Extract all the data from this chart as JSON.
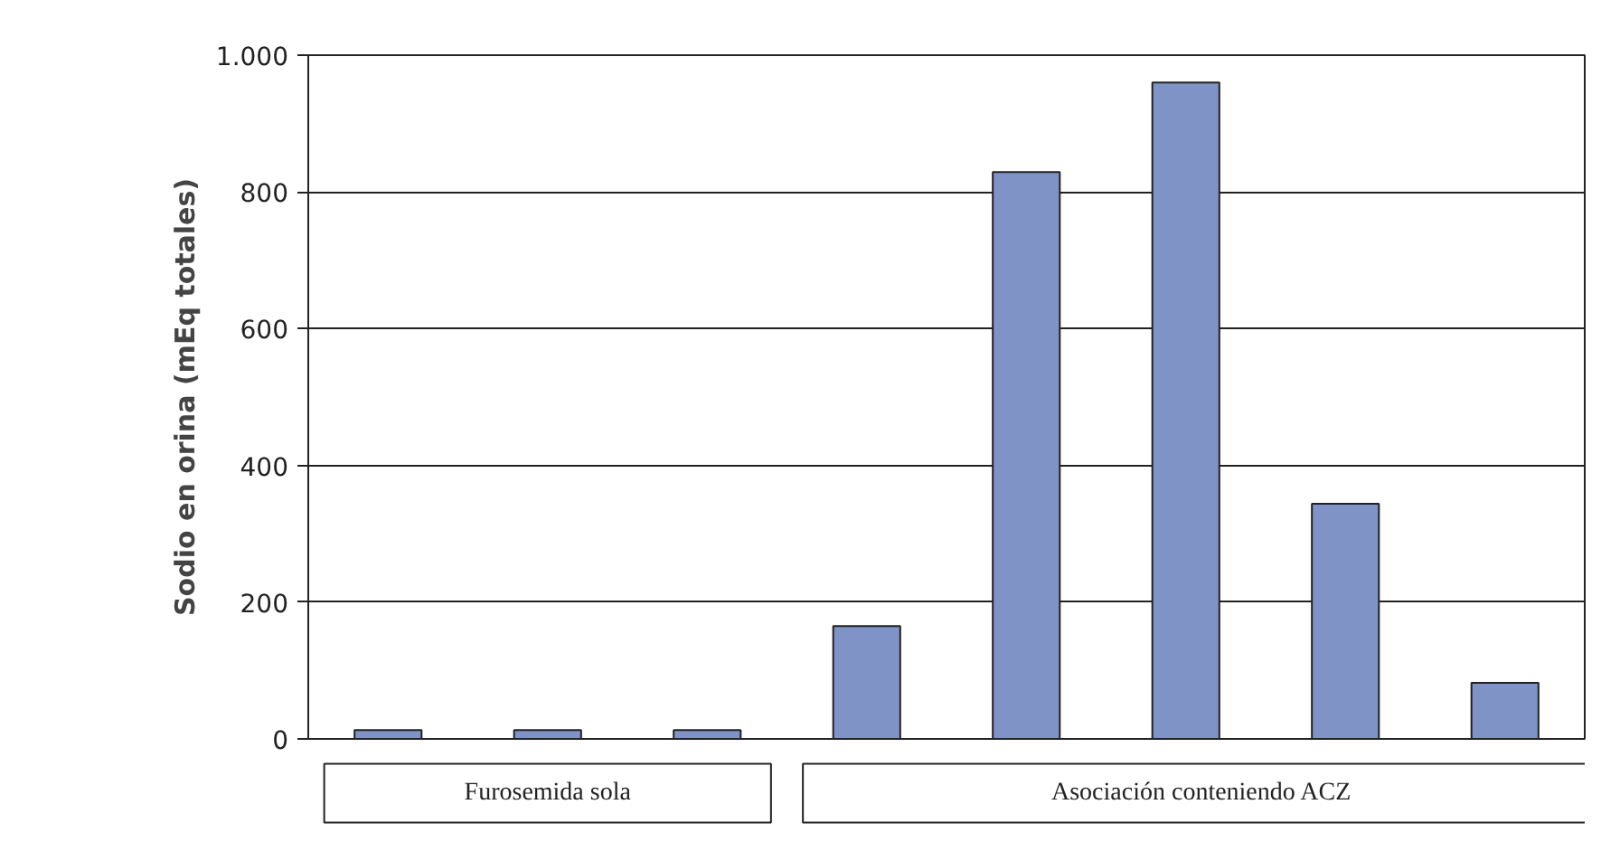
{
  "chart_data": {
    "type": "bar",
    "ylabel": "Sodio en orina (mEq totales)",
    "categories": [
      null,
      null,
      null,
      null,
      null,
      null,
      null,
      null
    ],
    "values": [
      13,
      13,
      13,
      165,
      829,
      960,
      344,
      82
    ],
    "color": "#7f93c6",
    "ylim": [
      0,
      1000
    ],
    "yticks": [
      0,
      200,
      400,
      600,
      800,
      {
        "value": 1000,
        "label": "1.000"
      }
    ],
    "grid": "y",
    "tick_labels": "y",
    "annotations": [
      "Furosemida sola",
      "Asociación conteniendo ACZ"
    ]
  }
}
